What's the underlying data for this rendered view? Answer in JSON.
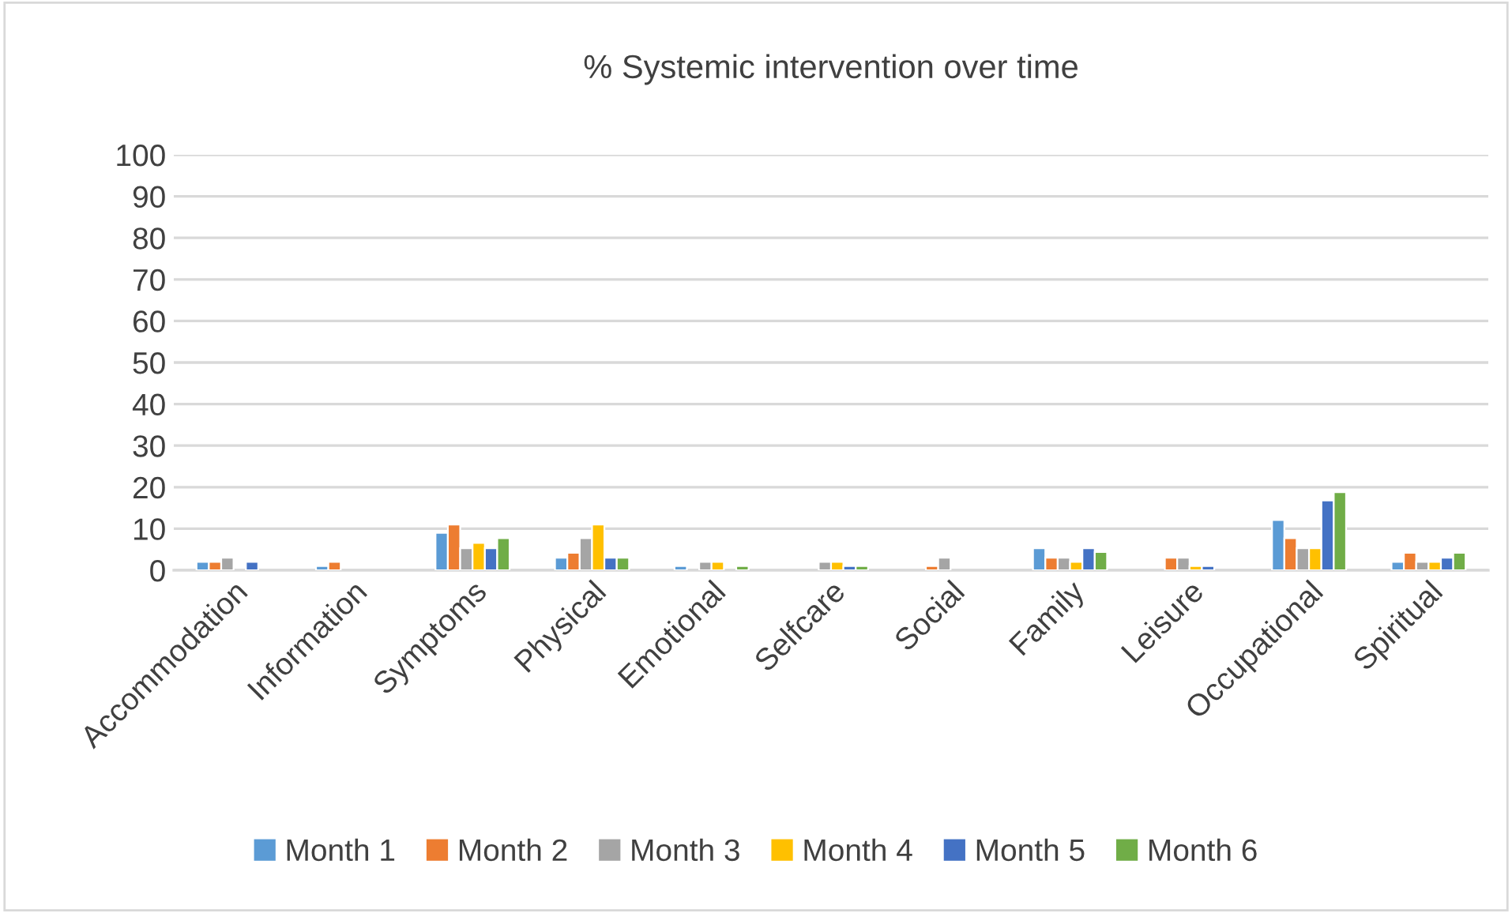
{
  "chart_data": {
    "type": "bar",
    "title": "% Systemic intervention over time",
    "categories": [
      "Accommodation",
      "Information",
      "Symptoms",
      "Physical",
      "Emotional",
      "Selfcare",
      "Social",
      "Family",
      "Leisure",
      "Occupational",
      "Spiritual"
    ],
    "series": [
      {
        "name": "Month 1",
        "color": "#5b9bd5",
        "values": [
          2,
          1,
          9,
          3,
          1,
          null,
          null,
          5.3,
          null,
          12.1,
          2
        ]
      },
      {
        "name": "Month 2",
        "color": "#ed7d31",
        "values": [
          2,
          2,
          11,
          4.2,
          null,
          null,
          1,
          3,
          3,
          7.7,
          4.2
        ]
      },
      {
        "name": "Month 3",
        "color": "#a5a5a5",
        "values": [
          3,
          null,
          5.3,
          7.7,
          2,
          2,
          3,
          3,
          3,
          5.3,
          2
        ]
      },
      {
        "name": "Month 4",
        "color": "#ffc000",
        "values": [
          null,
          null,
          6.6,
          11,
          2,
          2,
          null,
          2,
          1,
          5.3,
          2
        ]
      },
      {
        "name": "Month 5",
        "color": "#4472c4",
        "values": [
          2,
          null,
          5.3,
          3,
          null,
          1,
          null,
          5.3,
          1,
          16.8,
          3
        ]
      },
      {
        "name": "Month 6",
        "color": "#70ad47",
        "values": [
          null,
          null,
          7.7,
          3,
          1,
          1,
          null,
          4.4,
          null,
          18.8,
          4.2
        ]
      }
    ],
    "ylim": [
      0,
      100
    ],
    "yticks": [
      0,
      10,
      20,
      30,
      40,
      50,
      60,
      70,
      80,
      90,
      100
    ],
    "grid": "y",
    "legend": "bottom"
  }
}
